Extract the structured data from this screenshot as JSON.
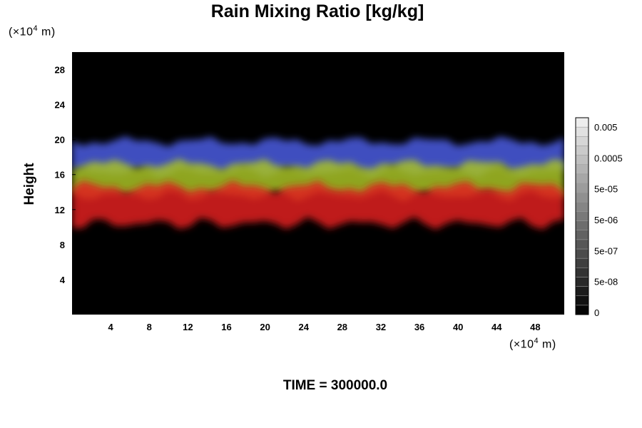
{
  "chart_data": {
    "type": "heatmap",
    "title": "Rain Mixing Ratio [kg/kg]",
    "ylabel": "Height",
    "x_unit": {
      "prefix": "(×10",
      "exp": "4",
      "suffix": " m)"
    },
    "y_unit": {
      "prefix": "(×10",
      "exp": "4",
      "suffix": " m)"
    },
    "xlim": [
      0,
      51
    ],
    "ylim": [
      0,
      30
    ],
    "x_ticks": [
      4,
      8,
      12,
      16,
      20,
      24,
      28,
      32,
      36,
      40,
      44,
      48
    ],
    "y_ticks": [
      4,
      8,
      12,
      16,
      20,
      24,
      28
    ],
    "background": "#000000",
    "bands": [
      {
        "color": "#4a5ce0",
        "y": [
          16.3,
          19.8
        ]
      },
      {
        "color": "#a8c226",
        "y": [
          13.6,
          17.2
        ]
      },
      {
        "color": "#e02020",
        "y": [
          10.4,
          14.6
        ]
      }
    ],
    "colorbar": {
      "labels": [
        "0.005",
        "0.0005",
        "5e-05",
        "5e-06",
        "5e-07",
        "5e-08",
        "0"
      ],
      "levels": 21
    },
    "footer": "TIME = 300000.0"
  }
}
